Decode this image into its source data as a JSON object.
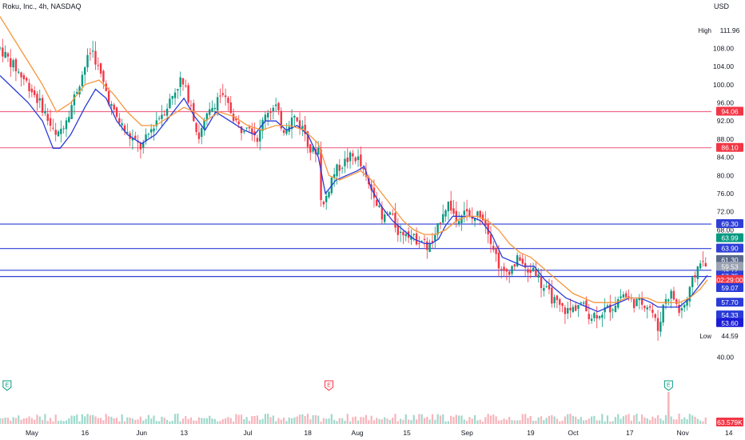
{
  "header": {
    "title": "Roku, Inc., 4h, NASDAQ",
    "currency": "USD"
  },
  "chart_data": {
    "type": "candlestick",
    "y_range": [
      39,
      116
    ],
    "price_ticks": [
      108.0,
      104.0,
      100.0,
      96.0,
      92.0,
      88.0,
      84.0,
      80.0,
      76.0,
      72.0,
      68.0,
      40.0
    ],
    "date_ticks": [
      {
        "label": "May",
        "day": 0
      },
      {
        "label": "16",
        "day": 15
      },
      {
        "label": "Jun",
        "day": 31
      },
      {
        "label": "13",
        "day": 43
      },
      {
        "label": "Jul",
        "day": 61
      },
      {
        "label": "18",
        "day": 78
      },
      {
        "label": "Aug",
        "day": 92
      },
      {
        "label": "15",
        "day": 106
      },
      {
        "label": "Sep",
        "day": 123
      },
      {
        "label": "19",
        "day": 141
      },
      {
        "label": "Oct",
        "day": 153
      },
      {
        "label": "17",
        "day": 169
      },
      {
        "label": "Nov",
        "day": 184
      },
      {
        "label": "14",
        "day": 197
      }
    ],
    "hlines": [
      {
        "price": 94.06,
        "color": "#f06a8a",
        "label": "94.06"
      },
      {
        "price": 86.1,
        "color": "#f06a8a",
        "label": "86.10"
      },
      {
        "price": 69.3,
        "color": "#2f3fd6",
        "label": "69.30"
      },
      {
        "price": 63.9,
        "color": "#2f3fd6",
        "label": "63.90"
      },
      {
        "price": 59.12,
        "color": "#2f3fd6",
        "label": "59.12"
      },
      {
        "price": 57.75,
        "color": "#2f3fd6",
        "label": "57.75"
      }
    ],
    "series": [
      {
        "name": "price",
        "kind": "candles",
        "points": [
          [
            0,
            108
          ],
          [
            4,
            104
          ],
          [
            8,
            100
          ],
          [
            12,
            95
          ],
          [
            16,
            88
          ],
          [
            20,
            95
          ],
          [
            24,
            104
          ],
          [
            26,
            108
          ],
          [
            28,
            103
          ],
          [
            32,
            94
          ],
          [
            36,
            89
          ],
          [
            40,
            86
          ],
          [
            44,
            92
          ],
          [
            47,
            95
          ],
          [
            51,
            101
          ],
          [
            54,
            96
          ],
          [
            56,
            88
          ],
          [
            58,
            92
          ],
          [
            62,
            98
          ],
          [
            64,
            96
          ],
          [
            68,
            90
          ],
          [
            70,
            92
          ],
          [
            73,
            88
          ],
          [
            75,
            94
          ],
          [
            78,
            95
          ],
          [
            80,
            90
          ],
          [
            83,
            93
          ],
          [
            86,
            90
          ],
          [
            88,
            85
          ],
          [
            90,
            86
          ],
          [
            91,
            72
          ],
          [
            94,
            80
          ],
          [
            96,
            82
          ],
          [
            99,
            84
          ],
          [
            101,
            84
          ],
          [
            104,
            78
          ],
          [
            106,
            76
          ],
          [
            108,
            70
          ],
          [
            110,
            72
          ],
          [
            113,
            67
          ],
          [
            115,
            68
          ],
          [
            117,
            66
          ],
          [
            119,
            66
          ],
          [
            121,
            64
          ],
          [
            123,
            66
          ],
          [
            125,
            72
          ],
          [
            127,
            74
          ],
          [
            129,
            70
          ],
          [
            131,
            73
          ],
          [
            133,
            70
          ],
          [
            136,
            72
          ],
          [
            138,
            68
          ],
          [
            140,
            63
          ],
          [
            142,
            58
          ],
          [
            145,
            60
          ],
          [
            147,
            62
          ],
          [
            149,
            58
          ],
          [
            151,
            60
          ],
          [
            153,
            56
          ],
          [
            156,
            53
          ],
          [
            158,
            51
          ],
          [
            161,
            50
          ],
          [
            164,
            52
          ],
          [
            167,
            49
          ],
          [
            170,
            50
          ],
          [
            173,
            51
          ],
          [
            176,
            54
          ],
          [
            179,
            52
          ],
          [
            182,
            52
          ],
          [
            184,
            51
          ],
          [
            186,
            46
          ],
          [
            188,
            53
          ],
          [
            190,
            54
          ],
          [
            192,
            50
          ],
          [
            194,
            52
          ],
          [
            196,
            57
          ],
          [
            198,
            61.5
          ],
          [
            200,
            59.1
          ]
        ]
      },
      {
        "name": "ma_fast",
        "kind": "line",
        "color": "#2a3bd8",
        "points": [
          [
            0,
            102
          ],
          [
            4,
            99
          ],
          [
            8,
            96
          ],
          [
            12,
            92
          ],
          [
            15,
            86
          ],
          [
            17,
            86
          ],
          [
            20,
            89
          ],
          [
            24,
            95
          ],
          [
            27,
            99
          ],
          [
            30,
            97
          ],
          [
            33,
            92
          ],
          [
            36,
            89
          ],
          [
            40,
            87
          ],
          [
            44,
            89
          ],
          [
            48,
            93
          ],
          [
            52,
            97
          ],
          [
            55,
            93
          ],
          [
            58,
            90
          ],
          [
            61,
            94
          ],
          [
            65,
            92
          ],
          [
            69,
            90
          ],
          [
            72,
            89
          ],
          [
            75,
            92
          ],
          [
            78,
            92
          ],
          [
            81,
            90
          ],
          [
            84,
            91
          ],
          [
            87,
            89
          ],
          [
            90,
            84
          ],
          [
            92,
            76
          ],
          [
            95,
            79
          ],
          [
            98,
            80
          ],
          [
            101,
            81
          ],
          [
            103,
            82
          ],
          [
            105,
            77
          ],
          [
            108,
            73
          ],
          [
            111,
            70
          ],
          [
            114,
            68
          ],
          [
            117,
            66
          ],
          [
            120,
            65
          ],
          [
            122,
            65
          ],
          [
            124,
            66
          ],
          [
            126,
            69
          ],
          [
            128,
            71
          ],
          [
            130,
            71
          ],
          [
            133,
            71
          ],
          [
            136,
            70
          ],
          [
            139,
            67
          ],
          [
            142,
            62
          ],
          [
            145,
            61
          ],
          [
            148,
            60
          ],
          [
            151,
            60
          ],
          [
            154,
            57
          ],
          [
            157,
            55
          ],
          [
            160,
            53
          ],
          [
            163,
            52
          ],
          [
            166,
            51
          ],
          [
            169,
            50
          ],
          [
            172,
            51
          ],
          [
            175,
            52
          ],
          [
            178,
            53
          ],
          [
            181,
            53
          ],
          [
            184,
            52
          ],
          [
            186,
            51
          ],
          [
            189,
            51
          ],
          [
            192,
            51
          ],
          [
            195,
            53
          ],
          [
            197,
            55
          ],
          [
            200,
            58
          ]
        ]
      },
      {
        "name": "ma_slow",
        "kind": "line",
        "color": "#f5963c",
        "points": [
          [
            0,
            115
          ],
          [
            4,
            110
          ],
          [
            8,
            105
          ],
          [
            12,
            100
          ],
          [
            16,
            94
          ],
          [
            20,
            96
          ],
          [
            24,
            100
          ],
          [
            28,
            101
          ],
          [
            32,
            98
          ],
          [
            36,
            94
          ],
          [
            40,
            91
          ],
          [
            44,
            91
          ],
          [
            48,
            93
          ],
          [
            52,
            95
          ],
          [
            55,
            94
          ],
          [
            58,
            92
          ],
          [
            62,
            94
          ],
          [
            66,
            93
          ],
          [
            70,
            91
          ],
          [
            74,
            90
          ],
          [
            78,
            91
          ],
          [
            82,
            91
          ],
          [
            86,
            90
          ],
          [
            90,
            87
          ],
          [
            93,
            80
          ],
          [
            96,
            79
          ],
          [
            99,
            80
          ],
          [
            102,
            81
          ],
          [
            105,
            79
          ],
          [
            108,
            76
          ],
          [
            111,
            73
          ],
          [
            114,
            70
          ],
          [
            117,
            68
          ],
          [
            120,
            67
          ],
          [
            123,
            67
          ],
          [
            126,
            68
          ],
          [
            129,
            70
          ],
          [
            132,
            71
          ],
          [
            135,
            71
          ],
          [
            138,
            70
          ],
          [
            141,
            68
          ],
          [
            144,
            65
          ],
          [
            147,
            63
          ],
          [
            150,
            62
          ],
          [
            153,
            60
          ],
          [
            156,
            58
          ],
          [
            159,
            56
          ],
          [
            162,
            54
          ],
          [
            165,
            53
          ],
          [
            168,
            52
          ],
          [
            171,
            52
          ],
          [
            174,
            52
          ],
          [
            177,
            53
          ],
          [
            180,
            53
          ],
          [
            183,
            53
          ],
          [
            186,
            52
          ],
          [
            189,
            52
          ],
          [
            192,
            52
          ],
          [
            195,
            53
          ],
          [
            198,
            55
          ],
          [
            200,
            57
          ]
        ]
      }
    ],
    "price_labels": [
      {
        "text": "111.96",
        "price": 111.96,
        "bg": "#ffffff",
        "fg": "#131722",
        "note": "High"
      },
      {
        "text": "63.99",
        "price": 66.2,
        "bg": "#089981",
        "fg": "#ffffff"
      },
      {
        "text": "61.30",
        "price": 61.4,
        "bg": "#5b6a8a",
        "fg": "#ffffff"
      },
      {
        "text": "59.53",
        "price": 59.9,
        "bg": "#9ba3b2",
        "fg": "#ffffff"
      },
      {
        "text": "02:29:00",
        "price": 57.0,
        "bg": "#f23645",
        "fg": "#ffffff"
      },
      {
        "text": "59.07",
        "price": 55.2,
        "bg": "#2a3bd8",
        "fg": "#ffffff"
      },
      {
        "text": "57.70",
        "price": 52.0,
        "bg": "#2a3bd8",
        "fg": "#ffffff"
      },
      {
        "text": "54.33",
        "price": 49.2,
        "bg": "#2a3bd8",
        "fg": "#ffffff"
      },
      {
        "text": "53.60",
        "price": 47.5,
        "bg": "#1c1bd6",
        "fg": "#ffffff"
      },
      {
        "text": "44.59",
        "price": 44.6,
        "bg": "#ffffff",
        "fg": "#131722",
        "note": "Low"
      }
    ],
    "volume": {
      "label": "63.579K"
    },
    "events": [
      {
        "day": 2,
        "label": "E",
        "color": "#089981"
      },
      {
        "day": 93,
        "label": "E",
        "color": "#f23645"
      },
      {
        "day": 189,
        "label": "E",
        "color": "#089981"
      }
    ]
  }
}
